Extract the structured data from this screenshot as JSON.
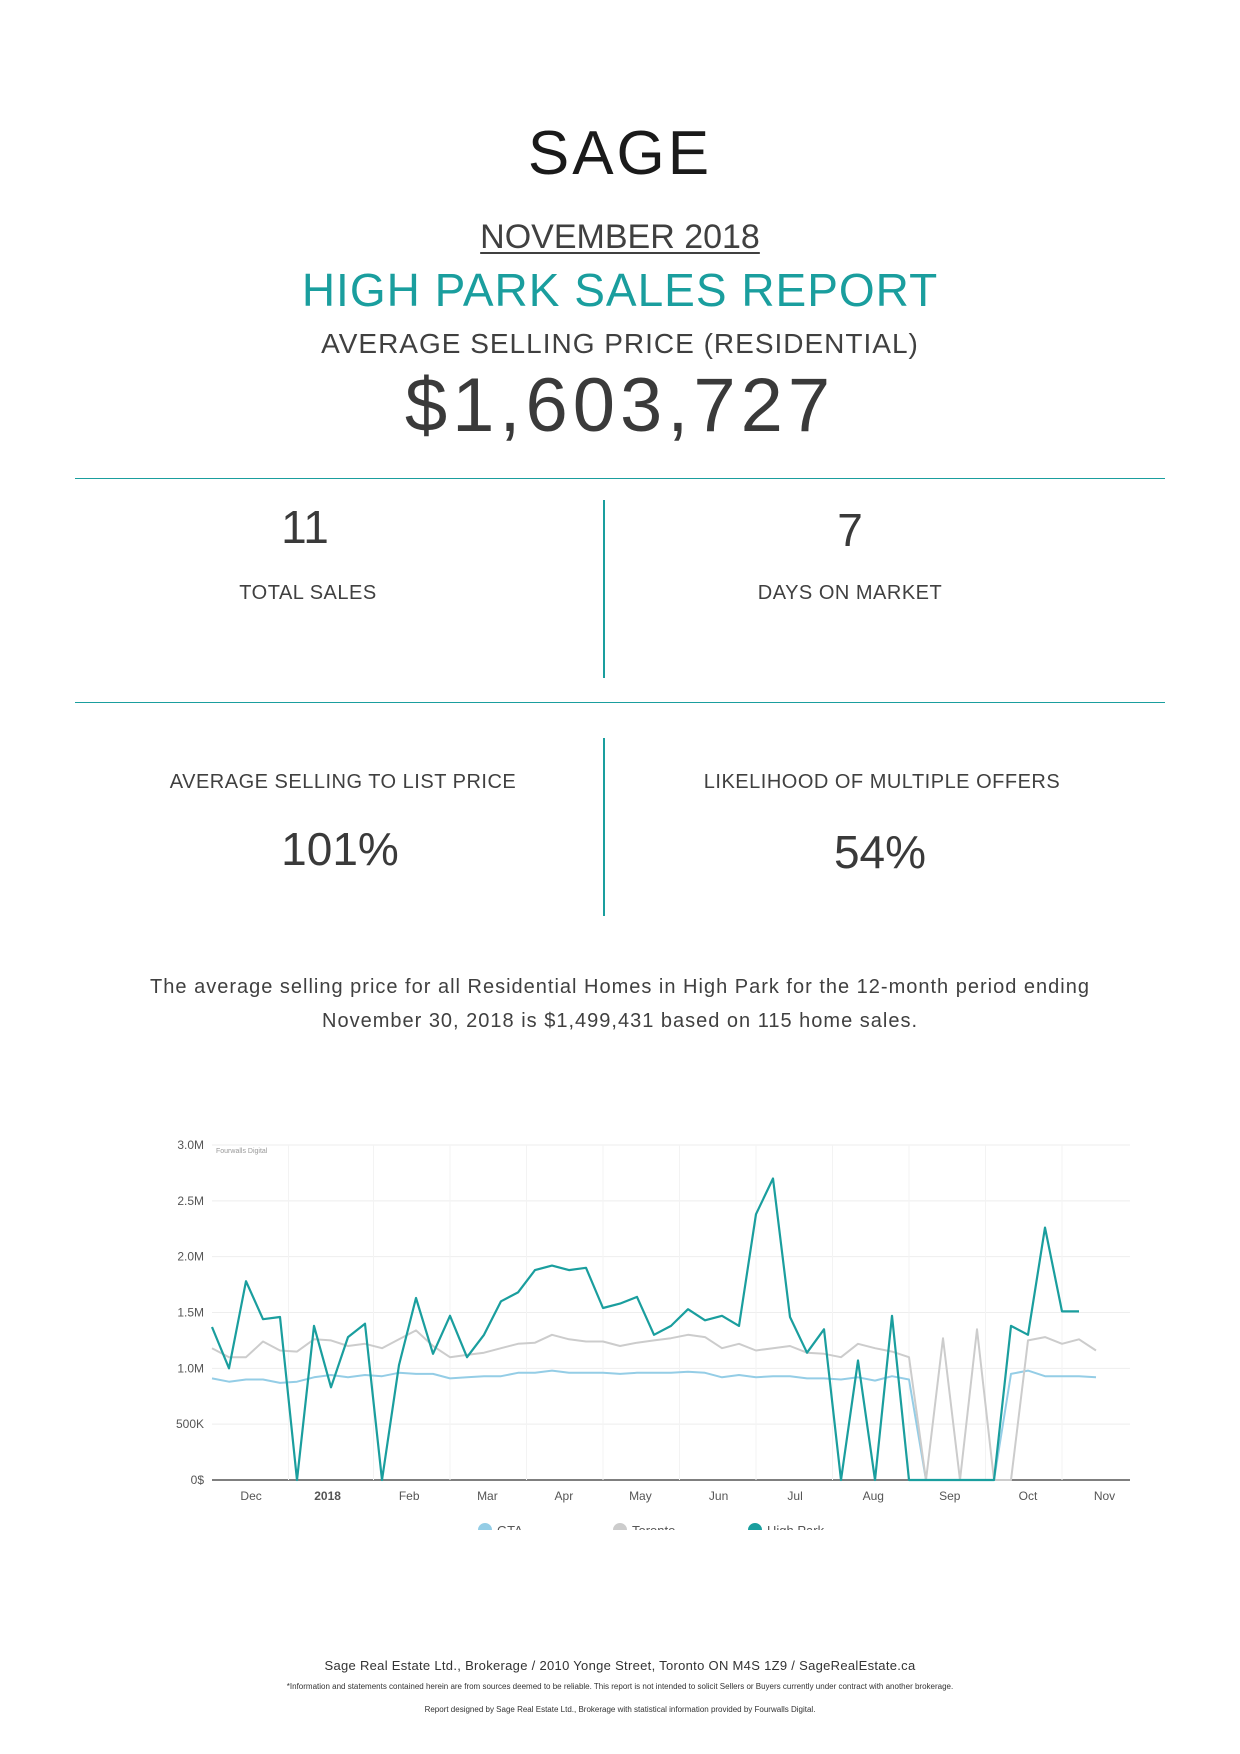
{
  "header": {
    "logo": "SAGE",
    "month": "NOVEMBER 2018",
    "report_title": "HIGH PARK SALES REPORT",
    "asp_label": "AVERAGE SELLING PRICE (RESIDENTIAL)",
    "asp_value": "$1,603,727"
  },
  "stats": {
    "total_sales": {
      "value": "11",
      "label": "TOTAL SALES"
    },
    "days_on_market": {
      "value": "7",
      "label": "DAYS ON MARKET"
    },
    "selling_to_list": {
      "value": "101%",
      "label": "AVERAGE SELLING TO LIST PRICE"
    },
    "multiple_offers": {
      "value": "54%",
      "label": "LIKELIHOOD OF MULTIPLE OFFERS"
    }
  },
  "description": "The average selling price for all Residential Homes in High Park for the 12-month period ending November 30, 2018 is $1,499,431 based on 115 home sales.",
  "chart_data": {
    "type": "line",
    "watermark": "Fourwalls Digital",
    "y_ticks": [
      "0$",
      "500K",
      "1.0M",
      "1.5M",
      "2.0M",
      "2.5M",
      "3.0M"
    ],
    "ylim": [
      0,
      3000000
    ],
    "x_ticks": [
      "Dec",
      "2018",
      "Feb",
      "Mar",
      "Apr",
      "May",
      "Jun",
      "Jul",
      "Aug",
      "Sep",
      "Oct",
      "Nov"
    ],
    "x_range": [
      0,
      54
    ],
    "legend": [
      "GTA",
      "Toronto",
      "High Park"
    ],
    "colors": {
      "GTA": "#94cde6",
      "Toronto": "#cccccc",
      "High Park": "#1a9e9e"
    },
    "series": [
      {
        "name": "GTA",
        "points": [
          [
            0,
            0.91
          ],
          [
            1,
            0.88
          ],
          [
            2,
            0.9
          ],
          [
            3,
            0.9
          ],
          [
            4,
            0.87
          ],
          [
            5,
            0.88
          ],
          [
            6,
            0.92
          ],
          [
            7,
            0.94
          ],
          [
            8,
            0.92
          ],
          [
            9,
            0.94
          ],
          [
            10,
            0.93
          ],
          [
            11,
            0.96
          ],
          [
            12,
            0.95
          ],
          [
            13,
            0.95
          ],
          [
            14,
            0.91
          ],
          [
            15,
            0.92
          ],
          [
            16,
            0.93
          ],
          [
            17,
            0.93
          ],
          [
            18,
            0.96
          ],
          [
            19,
            0.96
          ],
          [
            20,
            0.98
          ],
          [
            21,
            0.96
          ],
          [
            22,
            0.96
          ],
          [
            23,
            0.96
          ],
          [
            24,
            0.95
          ],
          [
            25,
            0.96
          ],
          [
            26,
            0.96
          ],
          [
            27,
            0.96
          ],
          [
            28,
            0.97
          ],
          [
            29,
            0.96
          ],
          [
            30,
            0.92
          ],
          [
            31,
            0.94
          ],
          [
            32,
            0.92
          ],
          [
            33,
            0.93
          ],
          [
            34,
            0.93
          ],
          [
            35,
            0.91
          ],
          [
            36,
            0.91
          ],
          [
            37,
            0.9
          ],
          [
            38,
            0.92
          ],
          [
            39,
            0.89
          ],
          [
            40,
            0.93
          ],
          [
            41,
            0.9
          ],
          [
            42,
            0.0
          ],
          [
            43,
            0.0
          ],
          [
            44,
            0.0
          ],
          [
            45,
            0.0
          ],
          [
            46,
            0.0
          ],
          [
            47,
            0.95
          ],
          [
            48,
            0.98
          ],
          [
            49,
            0.93
          ],
          [
            50,
            0.93
          ],
          [
            51,
            0.93
          ],
          [
            52,
            0.92
          ]
        ]
      },
      {
        "name": "Toronto",
        "points": [
          [
            0,
            1.18
          ],
          [
            1,
            1.1
          ],
          [
            2,
            1.1
          ],
          [
            3,
            1.24
          ],
          [
            4,
            1.16
          ],
          [
            5,
            1.15
          ],
          [
            6,
            1.26
          ],
          [
            7,
            1.25
          ],
          [
            8,
            1.2
          ],
          [
            9,
            1.22
          ],
          [
            10,
            1.18
          ],
          [
            11,
            1.26
          ],
          [
            12,
            1.34
          ],
          [
            13,
            1.2
          ],
          [
            14,
            1.1
          ],
          [
            15,
            1.12
          ],
          [
            16,
            1.14
          ],
          [
            17,
            1.18
          ],
          [
            18,
            1.22
          ],
          [
            19,
            1.23
          ],
          [
            20,
            1.3
          ],
          [
            21,
            1.26
          ],
          [
            22,
            1.24
          ],
          [
            23,
            1.24
          ],
          [
            24,
            1.2
          ],
          [
            25,
            1.23
          ],
          [
            26,
            1.25
          ],
          [
            27,
            1.27
          ],
          [
            28,
            1.3
          ],
          [
            29,
            1.28
          ],
          [
            30,
            1.18
          ],
          [
            31,
            1.22
          ],
          [
            32,
            1.16
          ],
          [
            33,
            1.18
          ],
          [
            34,
            1.2
          ],
          [
            35,
            1.14
          ],
          [
            36,
            1.13
          ],
          [
            37,
            1.1
          ],
          [
            38,
            1.22
          ],
          [
            39,
            1.18
          ],
          [
            40,
            1.15
          ],
          [
            41,
            1.1
          ],
          [
            42,
            0.0
          ],
          [
            43,
            1.27
          ],
          [
            44,
            0.0
          ],
          [
            45,
            1.35
          ],
          [
            46,
            0.0
          ],
          [
            47,
            0.0
          ],
          [
            48,
            1.25
          ],
          [
            49,
            1.28
          ],
          [
            50,
            1.22
          ],
          [
            51,
            1.26
          ],
          [
            52,
            1.16
          ]
        ]
      },
      {
        "name": "High Park",
        "points": [
          [
            0,
            1.37
          ],
          [
            1,
            1.0
          ],
          [
            2,
            1.78
          ],
          [
            3,
            1.44
          ],
          [
            4,
            1.46
          ],
          [
            5,
            0.0
          ],
          [
            6,
            1.38
          ],
          [
            7,
            0.83
          ],
          [
            8,
            1.28
          ],
          [
            9,
            1.4
          ],
          [
            10,
            0.0
          ],
          [
            11,
            1.03
          ],
          [
            12,
            1.63
          ],
          [
            13,
            1.13
          ],
          [
            14,
            1.47
          ],
          [
            15,
            1.1
          ],
          [
            16,
            1.3
          ],
          [
            17,
            1.6
          ],
          [
            18,
            1.68
          ],
          [
            19,
            1.88
          ],
          [
            20,
            1.92
          ],
          [
            21,
            1.88
          ],
          [
            22,
            1.9
          ],
          [
            23,
            1.54
          ],
          [
            24,
            1.58
          ],
          [
            25,
            1.64
          ],
          [
            26,
            1.3
          ],
          [
            27,
            1.38
          ],
          [
            28,
            1.53
          ],
          [
            29,
            1.43
          ],
          [
            30,
            1.47
          ],
          [
            31,
            1.38
          ],
          [
            32,
            2.38
          ],
          [
            33,
            2.7
          ],
          [
            34,
            1.46
          ],
          [
            35,
            1.14
          ],
          [
            36,
            1.35
          ],
          [
            37,
            0.0
          ],
          [
            38,
            1.07
          ],
          [
            39,
            0.0
          ],
          [
            40,
            1.47
          ],
          [
            41,
            0.0
          ],
          [
            42,
            0.0
          ],
          [
            43,
            0.0
          ],
          [
            44,
            0.0
          ],
          [
            45,
            0.0
          ],
          [
            46,
            0.0
          ],
          [
            47,
            1.38
          ],
          [
            48,
            1.3
          ],
          [
            49,
            2.26
          ],
          [
            50,
            1.51
          ],
          [
            51,
            1.51
          ]
        ]
      }
    ],
    "value_unit": "millions"
  },
  "footer": {
    "line1": "Sage Real Estate Ltd., Brokerage / 2010 Yonge Street, Toronto ON M4S 1Z9 / SageRealEstate.ca",
    "line2": "*Information and statements contained herein are from sources deemed to be reliable. This report is not intended to solicit Sellers or Buyers currently under contract with another brokerage.",
    "line3": "Report designed by Sage Real Estate Ltd., Brokerage with statistical information provided by Fourwalls Digital."
  }
}
